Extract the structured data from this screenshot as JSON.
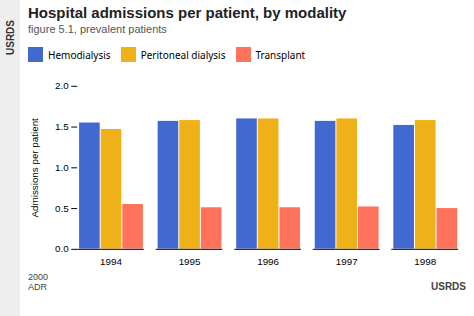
{
  "chart_data": {
    "type": "bar",
    "title": "Hospital admissions per patient, by modality",
    "subtitle": "figure 5.1, prevalent patients",
    "ylabel": "Admissions per patient",
    "categories": [
      "1994",
      "1995",
      "1996",
      "1997",
      "1998"
    ],
    "series": [
      {
        "name": "Hemodialysis",
        "values": [
          1.55,
          1.57,
          1.6,
          1.57,
          1.52
        ]
      },
      {
        "name": "Peritoneal dialysis",
        "values": [
          1.47,
          1.58,
          1.6,
          1.6,
          1.58
        ]
      },
      {
        "name": "Transplant",
        "values": [
          0.55,
          0.51,
          0.51,
          0.52,
          0.5
        ]
      }
    ],
    "ylim": [
      0.0,
      2.0
    ],
    "yticks": [
      {
        "value": 0.0,
        "label": "0.0"
      },
      0.5,
      {
        "value": 1.0,
        "label": "1.0"
      },
      1.5,
      {
        "value": 2.0,
        "label": "2.0"
      }
    ],
    "grid": false,
    "legend": "upper left",
    "annotations": [
      "USRDS",
      "2000\nADR",
      "USRDS"
    ]
  }
}
